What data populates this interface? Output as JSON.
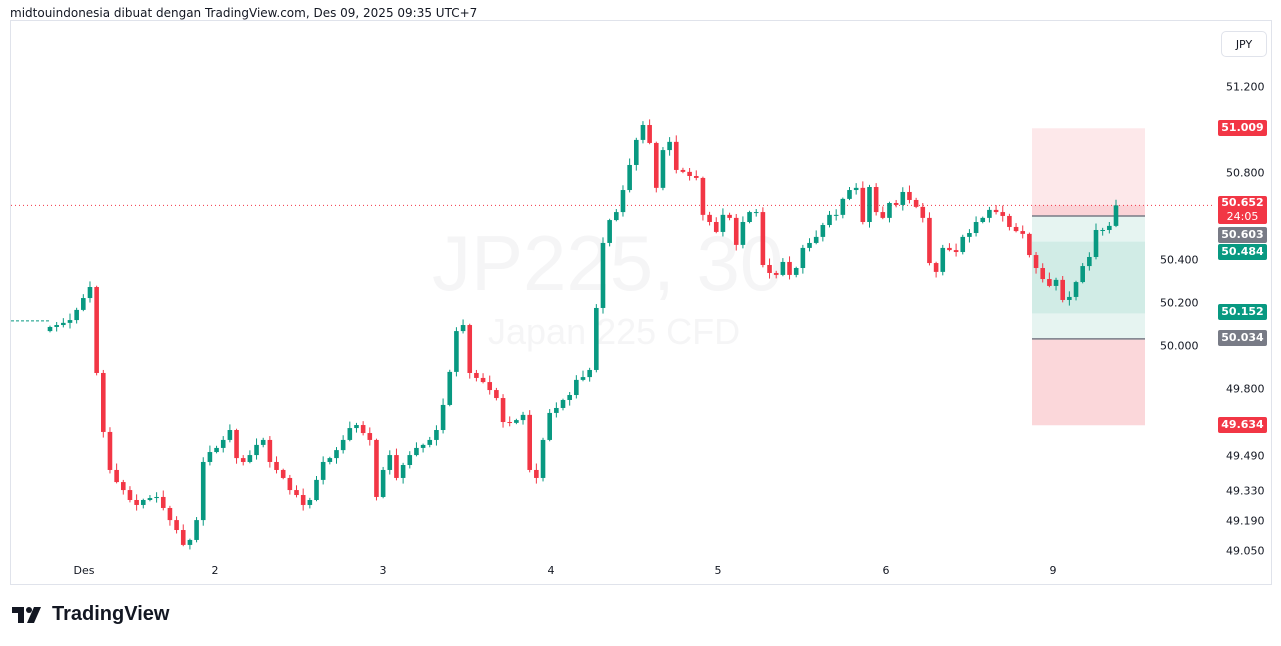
{
  "header": {
    "caption": "midtouindonesia dibuat dengan TradingView.com, Des 09, 2025 09:35 UTC+7"
  },
  "watermark": {
    "symbol": "JP225, 30",
    "description": "Japan 225 CFD"
  },
  "currency": "JPY",
  "brand": {
    "name": "TradingView"
  },
  "colors": {
    "up": "#089981",
    "down": "#f23645",
    "gray": "#787b86"
  },
  "price_axis": {
    "ticks": [
      "51.200",
      "50.800",
      "50.400",
      "50.200",
      "50.000",
      "49.800",
      "49.490",
      "49.330",
      "49.190",
      "49.050"
    ]
  },
  "labels": {
    "stop": "51.009",
    "last_price": "50.652",
    "countdown": "24:05",
    "entry": "50.603",
    "target_1": "50.484",
    "target_2": "50.152",
    "target_3": "50.034",
    "lower": "49.634"
  },
  "chart_data": {
    "type": "candlestick",
    "title": "JP225, 30",
    "x_tick_labels": [
      "Des",
      "2",
      "3",
      "4",
      "5",
      "6",
      "9"
    ],
    "ylim": [
      49.0,
      51.35
    ],
    "grid": false,
    "previous_close": 50.117,
    "first_open": 50.07,
    "close": [
      50.089,
      50.098,
      50.108,
      50.121,
      50.168,
      50.223,
      50.274,
      49.876,
      49.603,
      49.427,
      49.371,
      49.334,
      49.288,
      49.265,
      49.288,
      49.297,
      49.302,
      49.251,
      49.195,
      49.149,
      49.08,
      49.103,
      49.195,
      49.464,
      49.51,
      49.529,
      49.566,
      49.612,
      49.482,
      49.464,
      49.496,
      49.543,
      49.566,
      49.464,
      49.427,
      49.39,
      49.334,
      49.311,
      49.265,
      49.288,
      49.381,
      49.464,
      49.482,
      49.519,
      49.566,
      49.621,
      49.635,
      49.598,
      49.566,
      49.302,
      49.427,
      49.496,
      49.39,
      49.45,
      49.496,
      49.529,
      49.543,
      49.566,
      49.612,
      49.728,
      49.881,
      50.07,
      50.098,
      49.876,
      49.853,
      49.834,
      49.797,
      49.76,
      49.649,
      49.645,
      49.658,
      49.682,
      49.427,
      49.39,
      49.566,
      49.691,
      49.714,
      49.751,
      49.774,
      49.844,
      49.857,
      49.89,
      50.177,
      50.478,
      50.584,
      50.621,
      50.723,
      50.839,
      50.955,
      51.024,
      50.941,
      50.733,
      50.908,
      50.946,
      50.816,
      50.807,
      50.788,
      50.779,
      50.608,
      50.575,
      50.529,
      50.608,
      50.594,
      50.469,
      50.575,
      50.621,
      50.621,
      50.376,
      50.339,
      50.33,
      50.39,
      50.33,
      50.362,
      50.455,
      50.478,
      50.506,
      50.561,
      50.608,
      50.608,
      50.682,
      50.723,
      50.733,
      50.575,
      50.737,
      50.621,
      50.594,
      50.663,
      50.654,
      50.714,
      50.677,
      50.645,
      50.594,
      50.385,
      50.344,
      50.455,
      50.445,
      50.436,
      50.506,
      50.524,
      50.575,
      50.594,
      50.631,
      50.621,
      50.603,
      50.552,
      50.533,
      50.52,
      50.422,
      50.362,
      50.311,
      50.279,
      50.307,
      50.214,
      50.228,
      50.297,
      50.371,
      50.413,
      50.538,
      50.538,
      50.557,
      50.652
    ],
    "position_tool": {
      "stop": 51.009,
      "entry": 50.603,
      "target_1": 50.484,
      "target_2": 50.152,
      "target_3": 50.034,
      "lower": 49.634
    },
    "last_price": 50.652
  }
}
